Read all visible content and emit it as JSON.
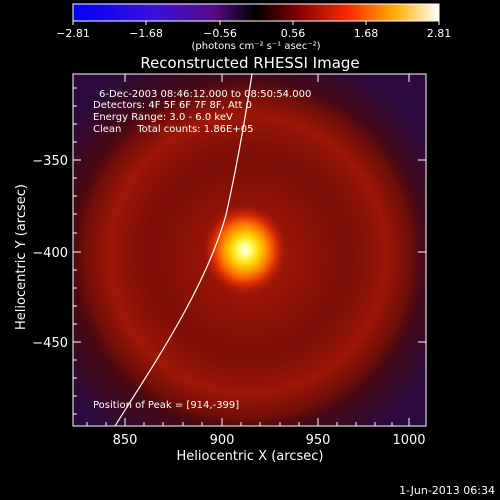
{
  "colorbar": {
    "ticks": [
      "−2.81",
      "−1.68",
      "−0.56",
      "0.56",
      "1.68",
      "2.81"
    ],
    "units": "(photons cm⁻² s⁻¹ asec⁻²)"
  },
  "title": "Reconstructed RHESSI Image",
  "info": {
    "time_range": "6-Dec-2003 08:46:12.000 to 08:50:54.000",
    "detectors": "Detectors: 4F 5F 6F 7F 8F, Att 0",
    "energy": "Energy Range: 3.0 - 6.0 keV",
    "clean": "Clean     Total counts: 1.86E+05",
    "peak": "Position of Peak = [914,-399]"
  },
  "axes": {
    "xlabel": "Heliocentric X (arcsec)",
    "ylabel": "Heliocentric Y (arcsec)",
    "xticks": [
      "850",
      "900",
      "950",
      "1000"
    ],
    "yticks": [
      "−350",
      "−400",
      "−450"
    ]
  },
  "footer": {
    "date": "1-Jun-2013 06:34"
  }
}
